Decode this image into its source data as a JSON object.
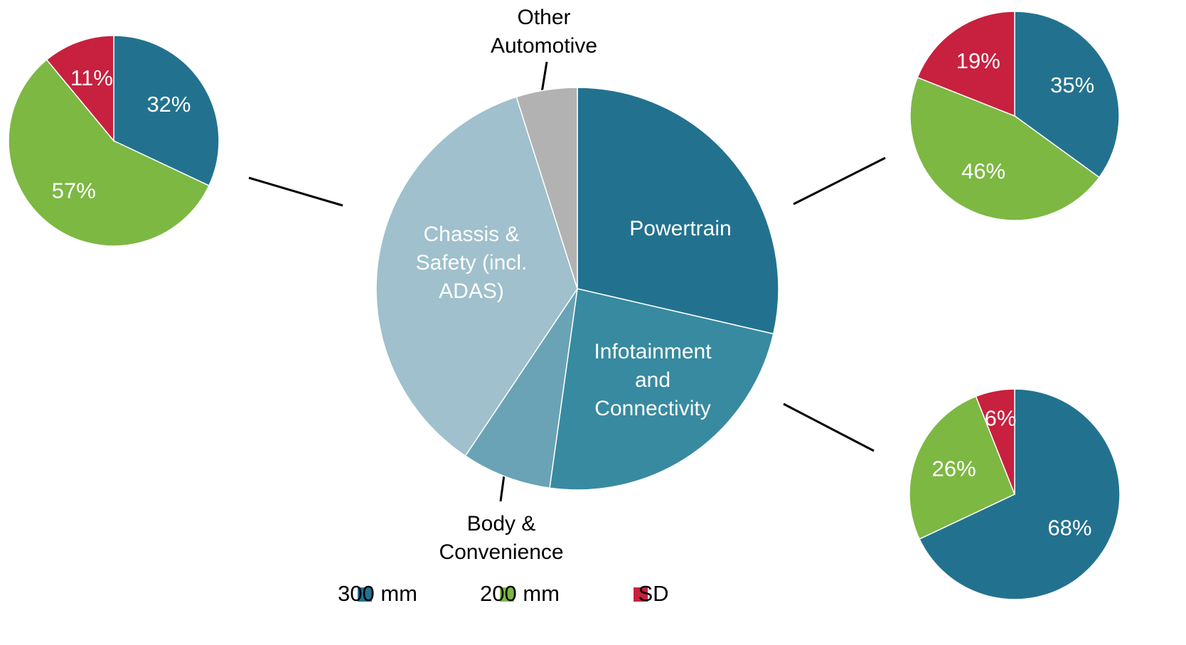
{
  "chart_data": [
    {
      "type": "pie",
      "categories": [
        "Powertrain",
        "Infotainment and Connectivity",
        "Body & Convenience",
        "Chassis & Safety (incl. ADAS)",
        "Other Automotive"
      ],
      "values": [
        28.6,
        23.6,
        7.2,
        35.7,
        4.9
      ],
      "colors": [
        "#22728f",
        "#388aa0",
        "#6aa3b5",
        "#9fc0cc",
        "#b2b2b2"
      ]
    },
    {
      "type": "pie",
      "values": [
        32,
        57,
        11
      ],
      "value_labels": [
        "32%",
        "57%",
        "11%"
      ]
    },
    {
      "type": "pie",
      "values": [
        35,
        46,
        19
      ],
      "value_labels": [
        "35%",
        "46%",
        "19%"
      ]
    },
    {
      "type": "pie",
      "values": [
        68,
        26,
        6
      ],
      "value_labels": [
        "68%",
        "26%",
        "6%"
      ]
    }
  ],
  "legend": {
    "names": [
      "300 mm",
      "200 mm",
      "SD"
    ],
    "colors": [
      "#22728f",
      "#7db843",
      "#c8203f"
    ]
  }
}
